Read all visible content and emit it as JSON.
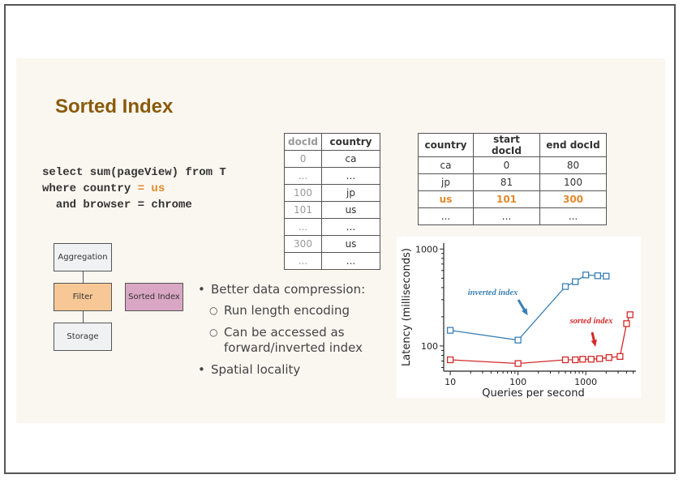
{
  "slide": {
    "title": "Sorted Index",
    "code": {
      "line1": "select sum(pageView) from T",
      "line2_pre": "where country ",
      "line2_hl": "= us",
      "line3": "  and browser = chrome"
    },
    "doc_table": {
      "headers": [
        "docId",
        "country"
      ],
      "rows": [
        [
          "0",
          "ca"
        ],
        [
          "...",
          "..."
        ],
        [
          "100",
          "jp"
        ],
        [
          "101",
          "us"
        ],
        [
          "...",
          "..."
        ],
        [
          "300",
          "us"
        ],
        [
          "...",
          "..."
        ]
      ]
    },
    "range_table": {
      "headers": [
        "country",
        "start docId",
        "end docId"
      ],
      "rows": [
        [
          "ca",
          "0",
          "80"
        ],
        [
          "jp",
          "81",
          "100"
        ],
        [
          "us",
          "101",
          "300"
        ],
        [
          "...",
          "...",
          "..."
        ]
      ],
      "highlight_row": 2
    },
    "diagram": {
      "aggregation": "Aggregation",
      "filter": "Filter",
      "storage": "Storage",
      "sorted_index": "Sorted Index"
    },
    "bullets": {
      "b1": "Better data compression:",
      "s1": "Run length encoding",
      "s2a": "Can be accessed as",
      "s2b": "forward/inverted index",
      "b2": "Spatial locality"
    },
    "colors": {
      "title": "#8a5a0a",
      "highlight": "#e2892b",
      "inverted": "#3a7fb5",
      "sorted": "#d42a2a"
    }
  },
  "chart_data": {
    "type": "line",
    "xscale": "log",
    "yscale": "log",
    "xlabel": "Queries per second",
    "ylabel": "Latency (milliseconds)",
    "xticks": [
      10,
      100,
      1000
    ],
    "yticks": [
      100,
      1000
    ],
    "xlim": [
      8,
      5500
    ],
    "ylim": [
      55,
      1150
    ],
    "series": [
      {
        "name": "inverted index",
        "color": "#3a7fb5",
        "marker": "square",
        "x": [
          10,
          100,
          500,
          700,
          1000,
          1500,
          2000
        ],
        "y": [
          145,
          115,
          410,
          460,
          540,
          530,
          525
        ]
      },
      {
        "name": "sorted index",
        "color": "#d42a2a",
        "marker": "square",
        "x": [
          10,
          100,
          500,
          700,
          900,
          1200,
          1600,
          2200,
          3200,
          4000,
          4500
        ],
        "y": [
          72,
          66,
          72,
          72,
          73,
          73,
          74,
          76,
          78,
          170,
          210
        ]
      }
    ]
  }
}
